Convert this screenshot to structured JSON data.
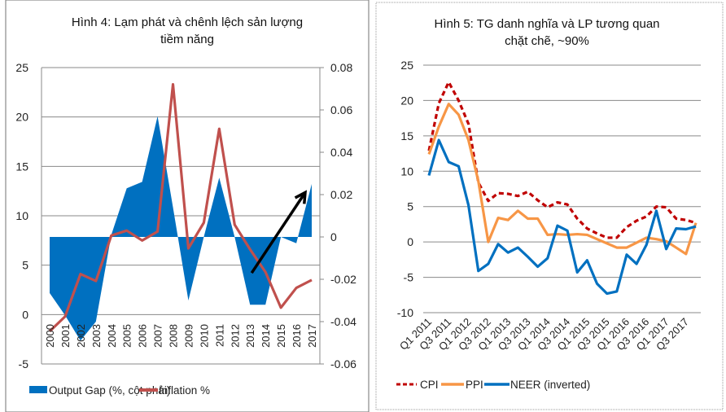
{
  "chart_data": [
    {
      "type": "area+line",
      "title_line1": "Hình 4: Lạm phát và chênh lệch sản lượng",
      "title_line2": "tiềm năng",
      "categories": [
        "2000",
        "2001",
        "2002",
        "2003",
        "2004",
        "2005",
        "2006",
        "2007",
        "2008",
        "2009",
        "2010",
        "2011",
        "2012",
        "2013",
        "2014",
        "2015",
        "2016",
        "2017"
      ],
      "left_axis": {
        "ylim": [
          -5,
          25
        ],
        "ticks": [
          "25",
          "20",
          "15",
          "10",
          "5",
          "0",
          "-5"
        ]
      },
      "right_axis": {
        "ylim": [
          -0.06,
          0.08
        ],
        "ticks": [
          "0.08",
          "0.06",
          "0.04",
          "0.02",
          "0",
          "-0.02",
          "-0.04",
          "-0.06"
        ]
      },
      "grid": true,
      "legend_placement": "bottom",
      "series": [
        {
          "name": "Output Gap (%, cột phải)",
          "type": "area",
          "axis": "right",
          "color": "#0070C0",
          "values": [
            -0.0265,
            -0.037,
            -0.049,
            -0.04,
            0.001,
            0.023,
            0.026,
            0.057,
            0.014,
            -0.03,
            0.0,
            0.028,
            0.0,
            -0.032,
            -0.032,
            0.0,
            -0.003,
            0.025
          ]
        },
        {
          "name": "Inflation %",
          "type": "line",
          "axis": "left",
          "color": "#C0504D",
          "values": [
            -1.7,
            -0.2,
            4.1,
            3.4,
            8.0,
            8.5,
            7.5,
            8.4,
            23.3,
            6.7,
            9.3,
            18.8,
            9.1,
            6.6,
            4.3,
            0.7,
            2.7,
            3.5
          ]
        }
      ],
      "annotation": {
        "type": "arrow",
        "color": "#000000",
        "from": [
          "2013",
          -0.017
        ],
        "to": [
          "2017",
          0.021
        ]
      }
    },
    {
      "type": "line",
      "title_line1": "Hình 5: TG danh nghĩa và LP tương quan",
      "title_line2": "chặt chẽ, ~90%",
      "categories": [
        "Q1 2011",
        "Q2 2011",
        "Q3 2011",
        "Q4 2011",
        "Q1 2012",
        "Q2 2012",
        "Q3 2012",
        "Q4 2012",
        "Q1 2013",
        "Q2 2013",
        "Q3 2013",
        "Q4 2013",
        "Q1 2014",
        "Q2 2014",
        "Q3 2014",
        "Q4 2014",
        "Q1 2015",
        "Q2 2015",
        "Q3 2015",
        "Q4 2015",
        "Q1 2016",
        "Q2 2016",
        "Q3 2016",
        "Q4 2016",
        "Q1 2017",
        "Q2 2017",
        "Q3 2017",
        "Q4 2017"
      ],
      "tick_labels": [
        "Q1 2011",
        "Q3 2011",
        "Q1 2012",
        "Q3 2012",
        "Q1 2013",
        "Q3 2013",
        "Q1 2014",
        "Q3 2014",
        "Q1 2015",
        "Q3 2015",
        "Q1 2016",
        "Q3 2016",
        "Q1 2017",
        "Q3 2017"
      ],
      "ylim": [
        -10,
        25
      ],
      "y_ticks": [
        "25",
        "20",
        "15",
        "10",
        "5",
        "0",
        "-5",
        "-10"
      ],
      "grid": true,
      "legend_placement": "bottom",
      "series": [
        {
          "name": "CPI",
          "color": "#C00000",
          "dash": true,
          "values": [
            12.9,
            19.6,
            22.6,
            20.0,
            16.7,
            8.4,
            5.8,
            6.9,
            6.8,
            6.5,
            7.1,
            5.9,
            4.9,
            5.6,
            5.3,
            3.3,
            1.9,
            1.2,
            0.6,
            0.6,
            2.1,
            3.0,
            3.6,
            5.0,
            4.9,
            3.3,
            3.1,
            2.7
          ]
        },
        {
          "name": "PPI",
          "color": "#F79646",
          "dash": false,
          "values": [
            12.4,
            16.3,
            19.5,
            18.0,
            14.4,
            8.6,
            0.0,
            3.4,
            3.1,
            4.4,
            3.3,
            3.3,
            1.0,
            1.1,
            1.0,
            1.1,
            1.0,
            0.4,
            -0.2,
            -0.8,
            -0.8,
            -0.1,
            0.6,
            0.4,
            0.1,
            -0.8,
            -1.7,
            2.7
          ]
        },
        {
          "name": "NEER (inverted)",
          "color": "#0070C0",
          "dash": false,
          "values": [
            9.4,
            14.4,
            11.3,
            10.7,
            5.2,
            -4.1,
            -3.1,
            -0.3,
            -1.5,
            -0.8,
            -2.1,
            -3.5,
            -2.3,
            2.3,
            1.6,
            -4.3,
            -2.6,
            -5.9,
            -7.3,
            -7.0,
            -1.8,
            -3.1,
            -0.4,
            4.4,
            -1.0,
            1.9,
            1.8,
            2.2
          ]
        }
      ]
    }
  ]
}
